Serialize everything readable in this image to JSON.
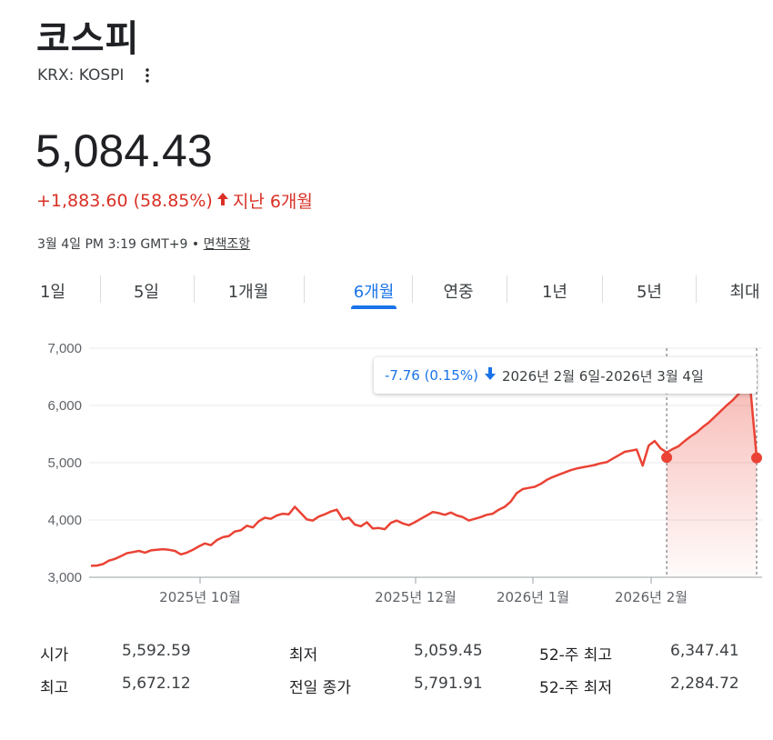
{
  "header": {
    "title": "코스피",
    "ticker": "KRX: KOSPI"
  },
  "quote": {
    "price": "5,084.43",
    "change": "+1,883.60 (58.85%)",
    "period": "지난 6개월",
    "timestamp": "3월 4일 PM 3:19 GMT+9 •",
    "disclaimer": "면책조항",
    "trend_color": "#d93025"
  },
  "tabs": [
    {
      "label": "1일"
    },
    {
      "label": "5일"
    },
    {
      "label": "1개월"
    },
    {
      "label": "6개월",
      "active": true
    },
    {
      "label": "연중"
    },
    {
      "label": "1년"
    },
    {
      "label": "5년"
    },
    {
      "label": "최대"
    }
  ],
  "tooltip": {
    "change": "-7.76 (0.15%)",
    "range": "2026년 2월 6일-2026년 3월 4일"
  },
  "chart_data": {
    "type": "line",
    "y_ticks": [
      "7,000",
      "6,000",
      "5,000",
      "4,000",
      "3,000"
    ],
    "ylim": [
      3000,
      7000
    ],
    "x_tick_labels": [
      "2025년 10월",
      "2025년 12월",
      "2026년 1월",
      "2026년 2월"
    ],
    "series": [
      {
        "color": "#ea4335",
        "values": [
          3200,
          3205,
          3230,
          3290,
          3320,
          3370,
          3420,
          3440,
          3460,
          3430,
          3470,
          3480,
          3490,
          3480,
          3460,
          3400,
          3430,
          3480,
          3540,
          3590,
          3560,
          3650,
          3700,
          3720,
          3800,
          3820,
          3900,
          3870,
          3980,
          4040,
          4020,
          4080,
          4110,
          4100,
          4230,
          4120,
          4010,
          3990,
          4060,
          4100,
          4150,
          4180,
          4010,
          4040,
          3920,
          3890,
          3960,
          3850,
          3860,
          3840,
          3950,
          3990,
          3940,
          3910,
          3960,
          4020,
          4080,
          4140,
          4120,
          4090,
          4130,
          4080,
          4050,
          3990,
          4020,
          4050,
          4090,
          4110,
          4180,
          4230,
          4320,
          4470,
          4540,
          4560,
          4580,
          4630,
          4700,
          4750,
          4790,
          4830,
          4870,
          4900,
          4920,
          4940,
          4960,
          4990,
          5010,
          5070,
          5130,
          5190,
          5210,
          5230,
          4950,
          5300,
          5380,
          5250,
          5180,
          5240,
          5290,
          5380,
          5460,
          5530,
          5620,
          5700,
          5800,
          5900,
          6000,
          6090,
          6200,
          6320,
          6250,
          5100
        ],
        "highlight_start_index": 96,
        "highlight_start_value": 5092.19,
        "highlight_end_value": 5084.43
      }
    ]
  },
  "stats": [
    {
      "label": "시가",
      "value": "5,592.59"
    },
    {
      "label": "최저",
      "value": "5,059.45"
    },
    {
      "label": "52-주 최고",
      "value": "6,347.41"
    },
    {
      "label": "최고",
      "value": "5,672.12"
    },
    {
      "label": "전일 종가",
      "value": "5,791.91"
    },
    {
      "label": "52-주 최저",
      "value": "2,284.72"
    }
  ]
}
